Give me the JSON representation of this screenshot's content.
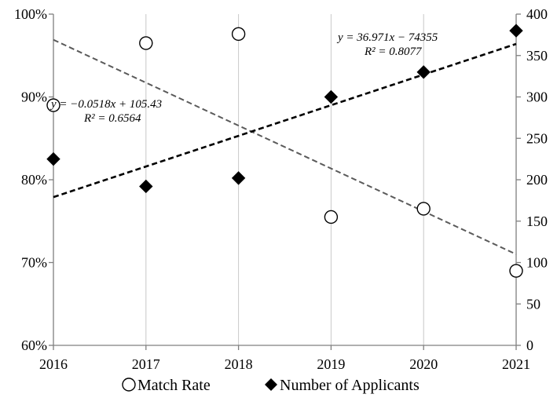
{
  "chart_data": {
    "type": "scatter",
    "x": [
      2016,
      2017,
      2018,
      2019,
      2020,
      2021
    ],
    "x_tick_labels": [
      "2016",
      "2017",
      "2018",
      "2019",
      "2020",
      "2021"
    ],
    "xlim": [
      2016,
      2021
    ],
    "grid": "vertical gridlines at each year",
    "series": [
      {
        "name": "Match Rate",
        "axis": "left",
        "marker": "open-circle",
        "values": [
          89.0,
          96.5,
          97.6,
          75.5,
          76.5,
          69.0
        ],
        "trendline": {
          "slope": -0.0518,
          "intercept": 105.43,
          "start": 96.9,
          "end": 71.0,
          "style": "dashed",
          "color": "#5a5a5a"
        },
        "equation": "y = −0.0518x + 105.43",
        "r_squared": "R² = 0.6564"
      },
      {
        "name": "Number of Applicants",
        "axis": "right",
        "marker": "filled-diamond",
        "values": [
          225,
          192,
          202,
          300,
          330,
          380
        ],
        "trendline": {
          "slope": 36.971,
          "intercept": -74355,
          "start": 179,
          "end": 364,
          "style": "dashed",
          "color": "#000000"
        },
        "equation": "y = 36.971x − 74355",
        "r_squared": "R² = 0.8077"
      }
    ],
    "y_left": {
      "ylim": [
        60,
        100
      ],
      "ticks": [
        60,
        70,
        80,
        90,
        100
      ],
      "tick_labels": [
        "60%",
        "70%",
        "80%",
        "90%",
        "100%"
      ]
    },
    "y_right": {
      "ylim": [
        0,
        400
      ],
      "ticks": [
        0,
        50,
        100,
        150,
        200,
        250,
        300,
        350,
        400
      ],
      "tick_labels": [
        "0",
        "50",
        "100",
        "150",
        "200",
        "250",
        "300",
        "350",
        "400"
      ]
    },
    "legend": {
      "position": "bottom",
      "items": [
        "Match Rate",
        "Number of Applicants"
      ]
    }
  }
}
